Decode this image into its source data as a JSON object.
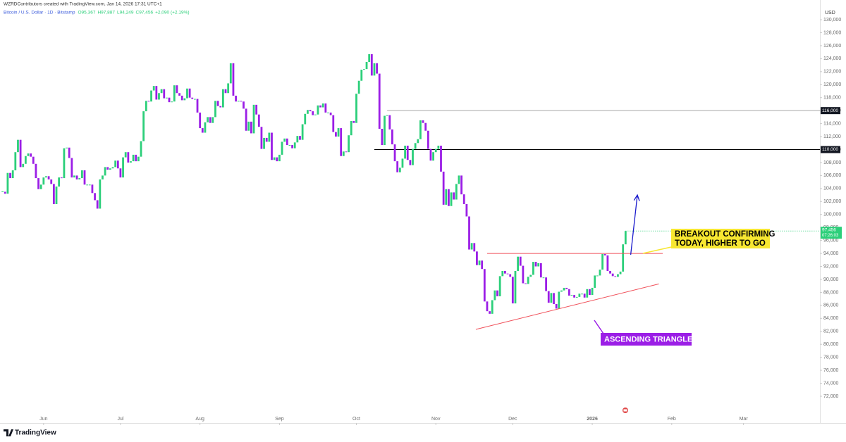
{
  "chart_data": {
    "type": "candlestick",
    "attribution": "WZRDContributors created with TradingView.com, Jan 14, 2026 17:31 UTC+1",
    "symbol": "Bitcoin / U.S. Dollar · 1D · Bitstamp",
    "ohlc_labels": [
      "O95,367",
      "H97,887",
      "L94,249",
      "C97,456",
      "+2,090 (+2.19%)"
    ],
    "currency": "USD",
    "brand": "TradingView",
    "up_color": "#2ccf7a",
    "down_color": "#9b1ee6",
    "values": [
      103500,
      103200,
      106400,
      105600,
      106800,
      109600,
      111500,
      107300,
      107800,
      109000,
      109400,
      108900,
      107800,
      105600,
      103900,
      104600,
      105700,
      105900,
      105400,
      104700,
      101600,
      104300,
      105700,
      105600,
      110200,
      110300,
      108700,
      105700,
      106000,
      105400,
      105600,
      106800,
      104600,
      104600,
      104600,
      103300,
      102200,
      100900,
      105400,
      106000,
      107300,
      106900,
      107100,
      107300,
      108300,
      107100,
      105700,
      108800,
      109600,
      108000,
      108200,
      109200,
      108200,
      108900,
      111300,
      115900,
      117500,
      117400,
      119100,
      119800,
      117700,
      118700,
      119300,
      117900,
      118000,
      117300,
      117400,
      119900,
      118700,
      118300,
      117600,
      117900,
      119400,
      118000,
      117800,
      117800,
      115700,
      113300,
      112600,
      114200,
      115000,
      114100,
      115000,
      117500,
      116700,
      116500,
      119300,
      118700,
      120200,
      123300,
      118300,
      117400,
      117500,
      117400,
      116300,
      112900,
      114300,
      112500,
      116900,
      115400,
      113500,
      110100,
      111800,
      111200,
      112600,
      108400,
      108800,
      108200,
      109200,
      111200,
      111700,
      110700,
      110700,
      110200,
      111100,
      112100,
      111500,
      113900,
      115500,
      116100,
      115900,
      115300,
      115400,
      116800,
      116500,
      117100,
      115700,
      115700,
      115300,
      112700,
      112000,
      113300,
      109000,
      109700,
      109600,
      112200,
      114400,
      114100,
      118600,
      120600,
      122300,
      122400,
      123500,
      124700,
      121400,
      123300,
      121700,
      113200,
      110700,
      115200,
      115300,
      113100,
      110800,
      108200,
      106500,
      107200,
      108600,
      110600,
      108400,
      107600,
      110100,
      111000,
      111600,
      114500,
      114100,
      112900,
      110100,
      108300,
      109600,
      110100,
      110600,
      106600,
      101500,
      103900,
      101300,
      103400,
      102300,
      104700,
      106000,
      103100,
      101600,
      99700,
      94600,
      95600,
      94300,
      92200,
      92900,
      91600,
      86600,
      85100,
      84700,
      86800,
      88300,
      87400,
      90500,
      91300,
      90900,
      90800,
      90400,
      86300,
      91300,
      93500,
      92100,
      89400,
      89300,
      90400,
      90700,
      92700,
      92000,
      92500,
      90300,
      90300,
      88200,
      86400,
      87900,
      86200,
      85500,
      88100,
      88300,
      88700,
      88500,
      87500,
      87600,
      87200,
      87300,
      87800,
      87800,
      87200,
      88500,
      87600,
      88700,
      90600,
      90600,
      91500,
      93900,
      93700,
      91300,
      90900,
      90500,
      90400,
      90800,
      91200,
      95400,
      97456
    ],
    "last_price_label": "97,456",
    "countdown": "07:26:03",
    "xlim": [
      -1,
      318.8
    ],
    "xticks": [
      {
        "value": 16,
        "label": "Jun"
      },
      {
        "value": 46,
        "label": "Jul"
      },
      {
        "value": 77,
        "label": "Aug"
      },
      {
        "value": 108,
        "label": "Sep"
      },
      {
        "value": 138,
        "label": "Oct"
      },
      {
        "value": 169,
        "label": "Nov"
      },
      {
        "value": 199,
        "label": "Dec"
      },
      {
        "value": 230,
        "label": "2026"
      },
      {
        "value": 261,
        "label": "Feb"
      },
      {
        "value": 289,
        "label": "Mar"
      }
    ],
    "ylim": [
      69070,
      133040
    ],
    "yticks": [
      {
        "value": 72000,
        "label": "72,000"
      },
      {
        "value": 74000,
        "label": "74,000"
      },
      {
        "value": 76000,
        "label": "76,000"
      },
      {
        "value": 78000,
        "label": "78,000"
      },
      {
        "value": 80000,
        "label": "80,000"
      },
      {
        "value": 82000,
        "label": "82,000"
      },
      {
        "value": 84000,
        "label": "84,000"
      },
      {
        "value": 86000,
        "label": "86,000"
      },
      {
        "value": 88000,
        "label": "88,000"
      },
      {
        "value": 90000,
        "label": "90,000"
      },
      {
        "value": 92000,
        "label": "92,000"
      },
      {
        "value": 94000,
        "label": "94,000"
      },
      {
        "value": 96000,
        "label": "96,000"
      },
      {
        "value": 98000,
        "label": "98,000"
      },
      {
        "value": 100000,
        "label": "100,000"
      },
      {
        "value": 102000,
        "label": "102,000"
      },
      {
        "value": 104000,
        "label": "104,000"
      },
      {
        "value": 106000,
        "label": "106,000"
      },
      {
        "value": 108000,
        "label": "108,000"
      },
      {
        "value": 110000,
        "label": "110,000"
      },
      {
        "value": 112000,
        "label": "112,000"
      },
      {
        "value": 114000,
        "label": "114,000"
      },
      {
        "value": 116000,
        "label": "116,000"
      },
      {
        "value": 118000,
        "label": "118,000"
      },
      {
        "value": 120000,
        "label": "120,000"
      },
      {
        "value": 122000,
        "label": "122,000"
      },
      {
        "value": 124000,
        "label": "124,000"
      },
      {
        "value": 126000,
        "label": "126,000"
      },
      {
        "value": 128000,
        "label": "128,000"
      },
      {
        "value": 130000,
        "label": "130,000"
      }
    ],
    "grid": false,
    "levels": [
      {
        "value": 116000,
        "label": "116,000",
        "x_start": 150,
        "color": "#a8a8a8"
      },
      {
        "value": 110000,
        "label": "110,000",
        "x_start": 145,
        "color": "#000000"
      }
    ],
    "trendlines": [
      {
        "x": [
          189,
          257.5
        ],
        "y": [
          94000,
          94000
        ],
        "color": "#f0505a"
      },
      {
        "x": [
          184.6,
          256
        ],
        "y": [
          82300,
          89300
        ],
        "color": "#f0505a"
      }
    ],
    "arrow": {
      "x": [
        245,
        247.6
      ],
      "y": [
        93800,
        103000
      ],
      "color": "#1a1acc"
    },
    "annotations": [
      {
        "text": "BREAKOUT CONFIRMING",
        "text2": "TODAY, HIGHER TO GO",
        "fill": "#f7e731",
        "text_color": "#000000"
      },
      {
        "text": "ASCENDING TRIANGLE",
        "fill": "#9b1ee6",
        "text_color": "#ffffff"
      }
    ]
  }
}
